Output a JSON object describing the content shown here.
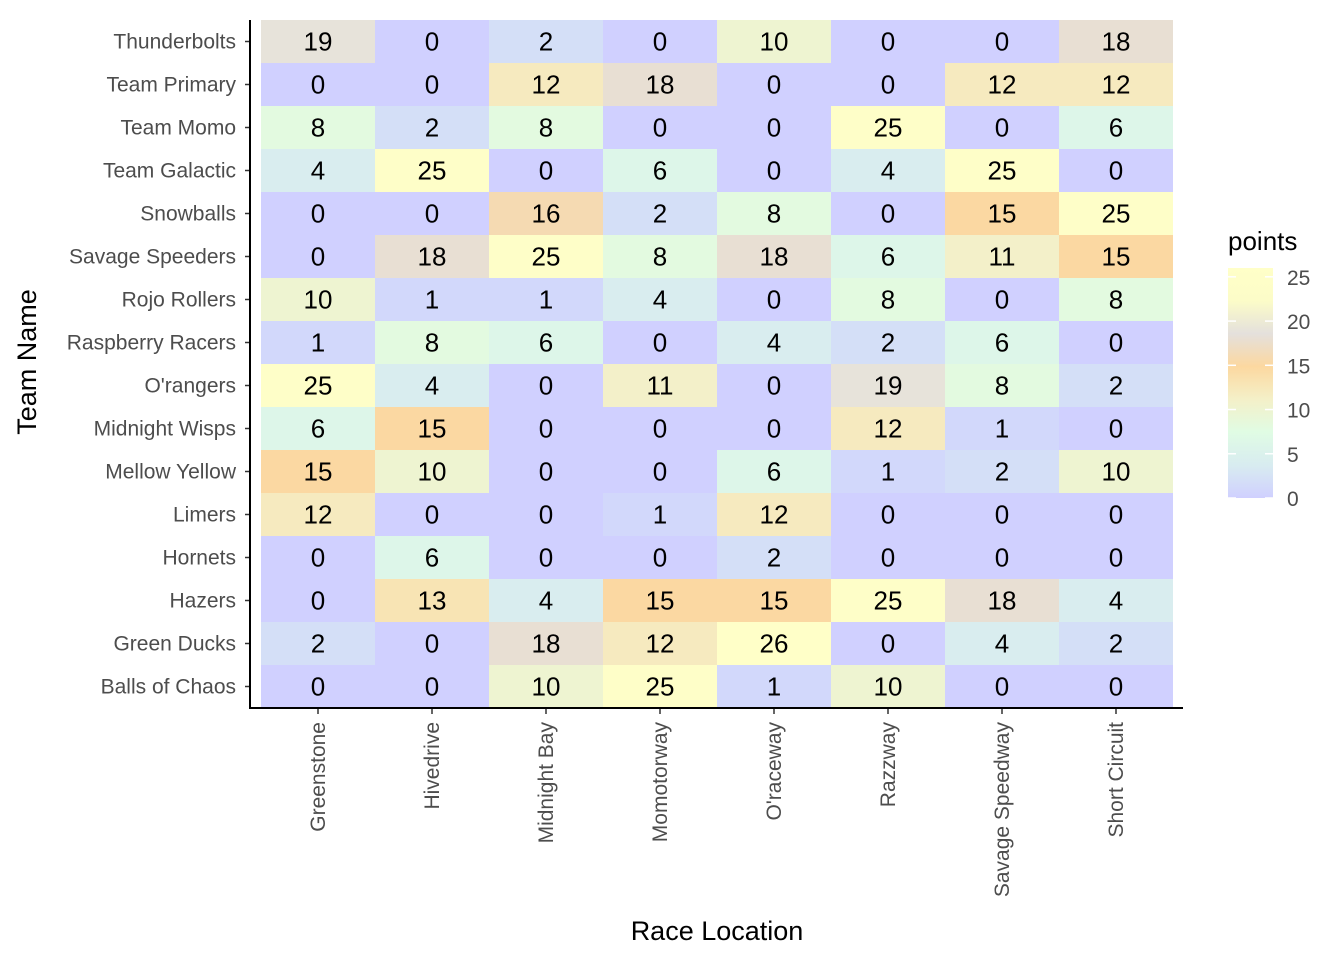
{
  "chart_data": {
    "type": "heatmap",
    "xlabel": "Race Location",
    "ylabel": "Team Name",
    "x": [
      "Greenstone",
      "Hivedrive",
      "Midnight Bay",
      "Momotorway",
      "O'raceway",
      "Razzway",
      "Savage Speedway",
      "Short Circuit"
    ],
    "y": [
      "Thunderbolts",
      "Team Primary",
      "Team Momo",
      "Team Galactic",
      "Snowballs",
      "Savage Speeders",
      "Rojo Rollers",
      "Raspberry Racers",
      "O'rangers",
      "Midnight Wisps",
      "Mellow Yellow",
      "Limers",
      "Hornets",
      "Hazers",
      "Green Ducks",
      "Balls of Chaos"
    ],
    "values": [
      [
        19,
        0,
        2,
        0,
        10,
        0,
        0,
        18
      ],
      [
        0,
        0,
        12,
        18,
        0,
        0,
        12,
        12
      ],
      [
        8,
        2,
        8,
        0,
        0,
        25,
        0,
        6
      ],
      [
        4,
        25,
        0,
        6,
        0,
        4,
        25,
        0
      ],
      [
        0,
        0,
        16,
        2,
        8,
        0,
        15,
        25
      ],
      [
        0,
        18,
        25,
        8,
        18,
        6,
        11,
        15
      ],
      [
        10,
        1,
        1,
        4,
        0,
        8,
        0,
        8
      ],
      [
        1,
        8,
        6,
        0,
        4,
        2,
        6,
        0
      ],
      [
        25,
        4,
        0,
        11,
        0,
        19,
        8,
        2
      ],
      [
        6,
        15,
        0,
        0,
        0,
        12,
        1,
        0
      ],
      [
        15,
        10,
        0,
        0,
        6,
        1,
        2,
        10
      ],
      [
        12,
        0,
        0,
        1,
        12,
        0,
        0,
        0
      ],
      [
        0,
        6,
        0,
        0,
        2,
        0,
        0,
        0
      ],
      [
        0,
        13,
        4,
        15,
        15,
        25,
        18,
        4
      ],
      [
        2,
        0,
        18,
        12,
        26,
        0,
        4,
        2
      ],
      [
        0,
        0,
        10,
        25,
        1,
        10,
        0,
        0
      ]
    ],
    "legend": {
      "title": "points",
      "ticks": [
        0,
        5,
        10,
        15,
        20,
        25
      ],
      "range": [
        0,
        26
      ],
      "colors": [
        "#d0d0ff",
        "#d8ecf0",
        "#e0fce4",
        "#f4f0c8",
        "#fcd8a0",
        "#e4e0dc",
        "#fcfcc8",
        "#ffffc8"
      ]
    },
    "grid": false,
    "legend_position": "right"
  }
}
